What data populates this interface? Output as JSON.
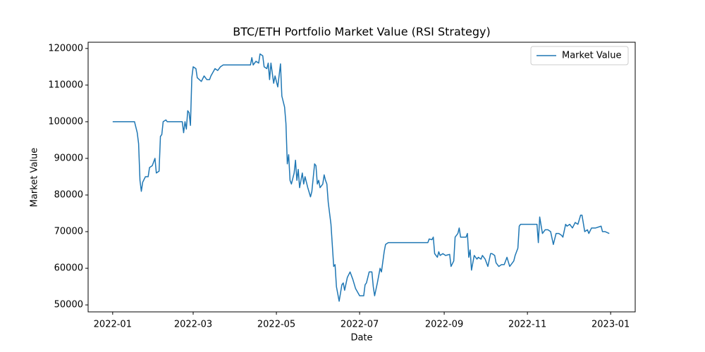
{
  "chart_data": {
    "type": "line",
    "title": "BTC/ETH Portfolio Market Value (RSI Strategy)",
    "x_label": "Date",
    "y_label": "Market Value",
    "x": [
      "2022-01-01",
      "2022-01-17",
      "2022-01-18",
      "2022-01-19",
      "2022-01-20",
      "2022-01-21",
      "2022-01-22",
      "2022-01-23",
      "2022-01-25",
      "2022-01-27",
      "2022-01-28",
      "2022-01-30",
      "2022-02-01",
      "2022-02-02",
      "2022-02-04",
      "2022-02-05",
      "2022-02-06",
      "2022-02-07",
      "2022-02-09",
      "2022-02-10",
      "2022-02-21",
      "2022-02-22",
      "2022-02-23",
      "2022-02-24",
      "2022-02-25",
      "2022-02-26",
      "2022-02-27",
      "2022-02-28",
      "2022-03-01",
      "2022-03-03",
      "2022-03-04",
      "2022-03-07",
      "2022-03-09",
      "2022-03-11",
      "2022-03-13",
      "2022-03-14",
      "2022-03-17",
      "2022-03-19",
      "2022-03-21",
      "2022-03-23",
      "2022-04-12",
      "2022-04-13",
      "2022-04-14",
      "2022-04-16",
      "2022-04-18",
      "2022-04-19",
      "2022-04-21",
      "2022-04-22",
      "2022-04-24",
      "2022-04-25",
      "2022-04-26",
      "2022-04-27",
      "2022-04-29",
      "2022-04-30",
      "2022-05-02",
      "2022-05-04",
      "2022-05-05",
      "2022-05-07",
      "2022-05-08",
      "2022-05-09",
      "2022-05-10",
      "2022-05-11",
      "2022-05-12",
      "2022-05-14",
      "2022-05-15",
      "2022-05-16",
      "2022-05-17",
      "2022-05-18",
      "2022-05-20",
      "2022-05-21",
      "2022-05-22",
      "2022-05-23",
      "2022-05-24",
      "2022-05-26",
      "2022-05-27",
      "2022-05-29",
      "2022-05-30",
      "2022-05-31",
      "2022-06-01",
      "2022-06-02",
      "2022-06-04",
      "2022-06-05",
      "2022-06-06",
      "2022-06-07",
      "2022-06-08",
      "2022-06-10",
      "2022-06-12",
      "2022-06-13",
      "2022-06-14",
      "2022-06-16",
      "2022-06-18",
      "2022-06-19",
      "2022-06-20",
      "2022-06-22",
      "2022-06-24",
      "2022-06-26",
      "2022-06-28",
      "2022-07-01",
      "2022-07-04",
      "2022-07-05",
      "2022-07-06",
      "2022-07-08",
      "2022-07-10",
      "2022-07-11",
      "2022-07-12",
      "2022-07-14",
      "2022-07-15",
      "2022-07-16",
      "2022-07-17",
      "2022-07-19",
      "2022-07-20",
      "2022-07-22",
      "2022-08-20",
      "2022-08-21",
      "2022-08-23",
      "2022-08-24",
      "2022-08-25",
      "2022-08-27",
      "2022-08-28",
      "2022-08-29",
      "2022-08-31",
      "2022-09-02",
      "2022-09-05",
      "2022-09-06",
      "2022-09-08",
      "2022-09-09",
      "2022-09-11",
      "2022-09-12",
      "2022-09-13",
      "2022-09-17",
      "2022-09-18",
      "2022-09-19",
      "2022-09-20",
      "2022-09-21",
      "2022-09-23",
      "2022-09-25",
      "2022-09-26",
      "2022-09-28",
      "2022-09-29",
      "2022-10-01",
      "2022-10-03",
      "2022-10-05",
      "2022-10-06",
      "2022-10-08",
      "2022-10-09",
      "2022-10-11",
      "2022-10-13",
      "2022-10-15",
      "2022-10-17",
      "2022-10-19",
      "2022-10-21",
      "2022-10-22",
      "2022-10-23",
      "2022-10-25",
      "2022-10-26",
      "2022-10-27",
      "2022-11-08",
      "2022-11-09",
      "2022-11-10",
      "2022-11-12",
      "2022-11-14",
      "2022-11-16",
      "2022-11-18",
      "2022-11-20",
      "2022-11-22",
      "2022-11-24",
      "2022-11-26",
      "2022-11-27",
      "2022-11-29",
      "2022-11-30",
      "2022-12-02",
      "2022-12-04",
      "2022-12-06",
      "2022-12-08",
      "2022-12-10",
      "2022-12-11",
      "2022-12-13",
      "2022-12-15",
      "2022-12-16",
      "2022-12-18",
      "2022-12-21",
      "2022-12-25",
      "2022-12-26",
      "2022-12-28",
      "2022-12-31"
    ],
    "series": [
      {
        "name": "Market Value",
        "color": "#1f77b4",
        "values": [
          100000,
          100000,
          98500,
          97000,
          94000,
          84000,
          81000,
          83500,
          85000,
          85000,
          87500,
          88000,
          90000,
          86000,
          86500,
          96000,
          96500,
          100000,
          100500,
          100000,
          100000,
          97000,
          100000,
          98000,
          103000,
          102500,
          99000,
          112000,
          115000,
          114500,
          112000,
          111000,
          112500,
          111500,
          111500,
          112500,
          114500,
          114000,
          115000,
          115500,
          115500,
          117500,
          115500,
          116500,
          116000,
          118500,
          118000,
          115000,
          114500,
          116000,
          111500,
          116000,
          110500,
          112500,
          109500,
          115800,
          107000,
          104000,
          99500,
          88500,
          91000,
          84000,
          83000,
          86000,
          89500,
          84000,
          87000,
          82000,
          86000,
          83000,
          85000,
          83500,
          82000,
          79500,
          81000,
          88500,
          88000,
          83000,
          84000,
          82000,
          83000,
          85500,
          84000,
          83000,
          78000,
          72000,
          60500,
          61000,
          55000,
          51000,
          55500,
          56000,
          54000,
          57500,
          59000,
          57000,
          54500,
          52500,
          52500,
          55500,
          56000,
          59000,
          59000,
          55000,
          52500,
          56000,
          58000,
          60000,
          59000,
          64500,
          66500,
          67000,
          67000,
          68000,
          67800,
          68500,
          64000,
          63000,
          64500,
          63500,
          64000,
          63500,
          63800,
          60500,
          62000,
          68500,
          69500,
          71000,
          68500,
          68500,
          69500,
          63000,
          65000,
          59500,
          63500,
          62500,
          63000,
          62500,
          63500,
          62500,
          60500,
          64000,
          64000,
          63500,
          61500,
          60500,
          61000,
          61000,
          63000,
          60500,
          61500,
          62000,
          63500,
          65500,
          71500,
          72000,
          72000,
          67000,
          74000,
          69500,
          70500,
          70500,
          70000,
          66500,
          69500,
          69500,
          69000,
          68500,
          72000,
          71500,
          72000,
          71000,
          72500,
          72000,
          74500,
          74500,
          70000,
          70500,
          69500,
          71000,
          71000,
          71500,
          70000,
          70000,
          69500
        ]
      }
    ],
    "xlim": [
      "2021-12-14",
      "2023-01-19"
    ],
    "xticks": [
      {
        "value": "2022-01-01",
        "label": "2022-01"
      },
      {
        "value": "2022-03-01",
        "label": "2022-03"
      },
      {
        "value": "2022-05-01",
        "label": "2022-05"
      },
      {
        "value": "2022-07-01",
        "label": "2022-07"
      },
      {
        "value": "2022-09-01",
        "label": "2022-09"
      },
      {
        "value": "2022-11-01",
        "label": "2022-11"
      },
      {
        "value": "2023-01-01",
        "label": "2023-01"
      }
    ],
    "ylim": [
      48100,
      121700
    ],
    "yticks": [
      50000,
      60000,
      70000,
      80000,
      90000,
      100000,
      110000,
      120000
    ],
    "grid": false,
    "legend": "upper right"
  }
}
